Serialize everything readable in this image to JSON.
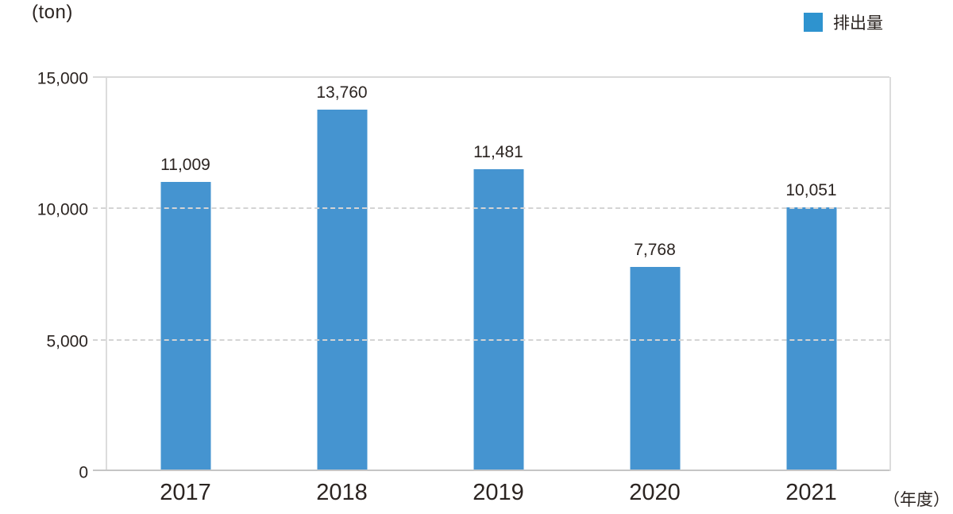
{
  "header": {
    "y_unit_label": "(ton)",
    "x_unit_label": "（年度）"
  },
  "legend": {
    "label": "排出量",
    "swatch_color": "#2e93cf"
  },
  "colors": {
    "bar": "#4594d0",
    "text": "#2b2421"
  },
  "chart_data": {
    "type": "bar",
    "title": "",
    "categories": [
      "2017",
      "2018",
      "2019",
      "2020",
      "2021"
    ],
    "values": [
      11009,
      13760,
      11481,
      7768,
      10051
    ],
    "value_labels": [
      "11,009",
      "13,760",
      "11,481",
      "7,768",
      "10,051"
    ],
    "series": [
      {
        "name": "排出量",
        "values": [
          11009,
          13760,
          11481,
          7768,
          10051
        ]
      }
    ],
    "xlabel": "（年度）",
    "ylabel": "(ton)",
    "ylim": [
      0,
      15000
    ],
    "yticks": [
      0,
      5000,
      10000,
      15000
    ],
    "ytick_labels": [
      "0",
      "5,000",
      "10,000",
      "15,000"
    ],
    "legend_entries": [
      "排出量"
    ],
    "legend_position": "top-right",
    "grid": "horizontal; dashed at 5,000 and 10,000; solid at 0 and 15,000"
  }
}
